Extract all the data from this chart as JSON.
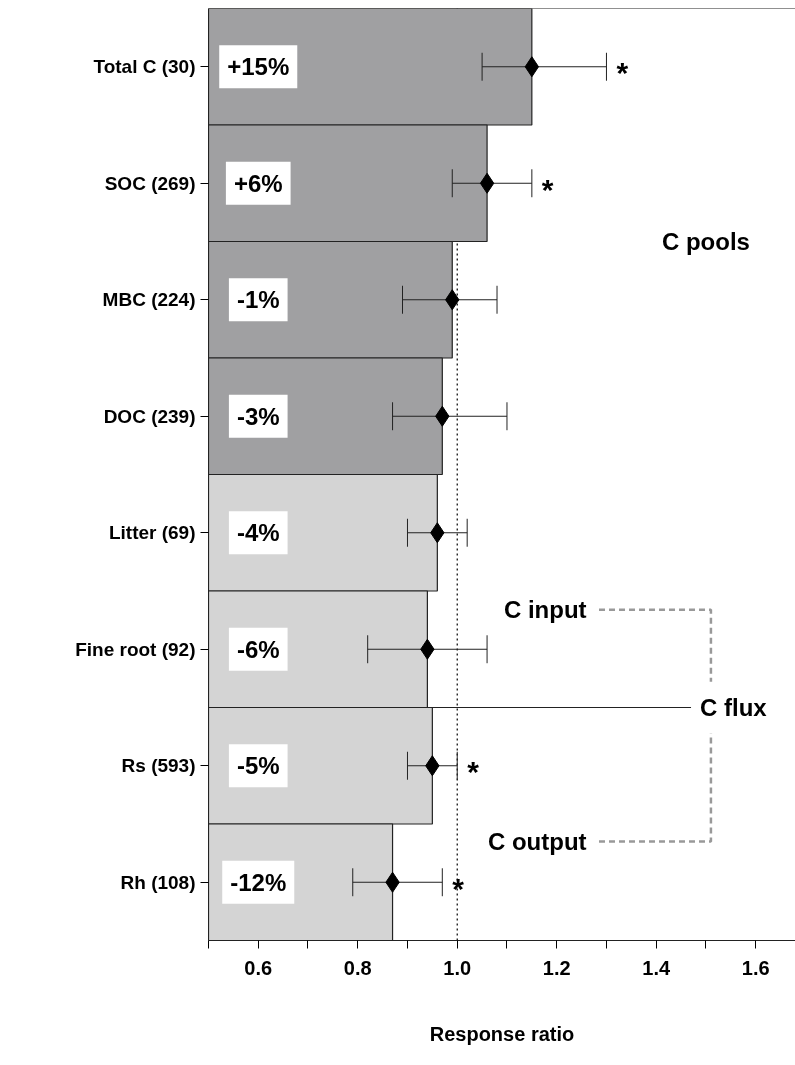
{
  "chart_data": {
    "type": "bar",
    "orientation": "horizontal",
    "xlabel": "Response ratio",
    "categories": [
      "Total C (30)",
      "SOC (269)",
      "MBC (224)",
      "DOC (239)",
      "Litter (69)",
      "Fine root (92)",
      "Rs (593)",
      "Rh (108)"
    ],
    "series": [
      {
        "colors": [
          "#a0a0a2",
          "#a0a0a2",
          "#a0a0a2",
          "#a0a0a2",
          "#d4d4d4",
          "#d4d4d4",
          "#d4d4d4",
          "#d4d4d4"
        ],
        "values": [
          1.15,
          1.06,
          0.99,
          0.97,
          0.96,
          0.94,
          0.95,
          0.87
        ]
      },
      {
        "type": "scatter",
        "marker": "diamond",
        "color": "#000000",
        "values": [
          1.15,
          1.06,
          0.99,
          0.97,
          0.96,
          0.94,
          0.95,
          0.87
        ],
        "errors": [
          [
            1.05,
            1.3
          ],
          [
            0.99,
            1.15
          ],
          [
            0.89,
            1.08
          ],
          [
            0.87,
            1.1
          ],
          [
            0.9,
            1.02
          ],
          [
            0.82,
            1.06
          ],
          [
            0.9,
            1.0
          ],
          [
            0.79,
            0.97
          ]
        ]
      }
    ],
    "xlim": [
      0.5,
      1.68
    ],
    "xticks": [
      {
        "value": 0.5,
        "label": null
      },
      0.6,
      {
        "value": 0.7,
        "label": null
      },
      0.8,
      {
        "value": 0.9,
        "label": null
      },
      {
        "value": 1.0,
        "label": "1.0"
      },
      {
        "value": 1.1,
        "label": null
      },
      1.2,
      {
        "value": 1.3,
        "label": null
      },
      1.4,
      {
        "value": 1.5,
        "label": null
      },
      1.6
    ],
    "ref_lines": [
      {
        "axis": "x",
        "value": 1.0,
        "label": null,
        "line_style": "dotted",
        "color": "#000000"
      }
    ],
    "annotations": [
      "+15%",
      "+6%",
      "-1%",
      "-3%",
      "-4%",
      "-6%",
      "-5%",
      "-12%",
      "*",
      "*",
      "*",
      "*",
      "C pools",
      "C input",
      "C output",
      "C flux"
    ]
  }
}
